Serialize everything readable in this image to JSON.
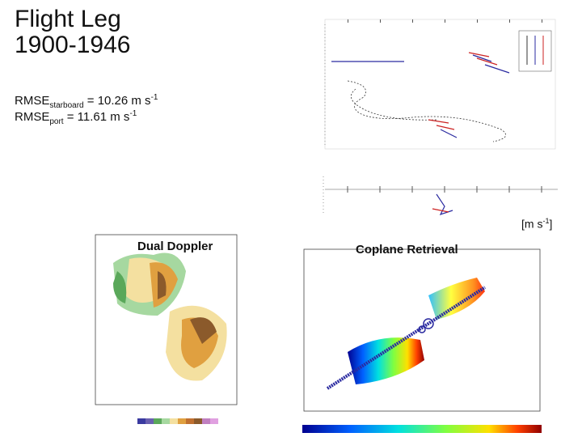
{
  "title": {
    "line1": "Flight Leg",
    "line2": "1900-1946"
  },
  "rmse": {
    "starboard": {
      "prefix": "RMSE",
      "sub": "starboard",
      "value": " = 10.26 m s",
      "exp": "-1"
    },
    "port": {
      "prefix": "RMSE",
      "sub": "port",
      "value": " = 11.61 m s",
      "exp": "-1"
    }
  },
  "units_label": {
    "text": "[m s",
    "exp": "-1",
    "close": "]"
  },
  "panels": {
    "dual_doppler": {
      "label": "Dual Doppler"
    },
    "coplane": {
      "label": "Coplane Retrieval"
    }
  },
  "colors": {
    "blue_line": "#2a2aa0",
    "red_line": "#cc2222",
    "brown": "#8b5a2b",
    "green": "#5aa85a"
  }
}
